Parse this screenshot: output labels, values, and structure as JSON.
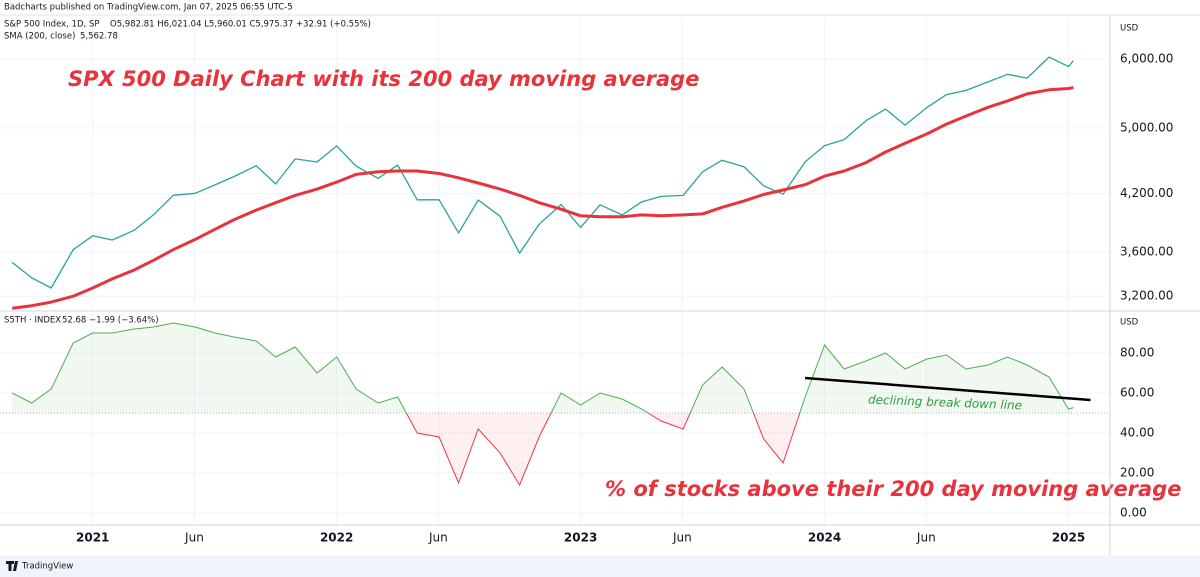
{
  "header": "Badcharts published on TradingView.com, Jan 07, 2025 06:55 UTC-5",
  "footer": "TradingView",
  "chart_data": [
    {
      "type": "line",
      "log": true,
      "currency": "USD",
      "title": "SPX 500 Daily Chart with its 200 day moving average",
      "legend": {
        "symbol": "S&P 500 Index, 1D, SP",
        "ohlc": "O5,982.81 H6,021.04 L5,960.01 C5,975.37 +32.91 (+0.55%)",
        "indicator": "SMA (200, close)",
        "indicator_value": "5,562.78"
      },
      "xlim": [
        2020.62,
        2025.17
      ],
      "x": [
        2020.67,
        2020.75,
        2020.83,
        2020.92,
        2021.0,
        2021.08,
        2021.17,
        2021.25,
        2021.33,
        2021.42,
        2021.5,
        2021.58,
        2021.67,
        2021.75,
        2021.83,
        2021.92,
        2022.0,
        2022.08,
        2022.17,
        2022.25,
        2022.33,
        2022.42,
        2022.5,
        2022.58,
        2022.67,
        2022.75,
        2022.83,
        2022.92,
        2023.0,
        2023.08,
        2023.17,
        2023.25,
        2023.33,
        2023.42,
        2023.5,
        2023.58,
        2023.67,
        2023.75,
        2023.83,
        2023.92,
        2024.0,
        2024.08,
        2024.17,
        2024.25,
        2024.33,
        2024.42,
        2024.5,
        2024.58,
        2024.67,
        2024.75,
        2024.83,
        2024.92,
        2025.0,
        2025.02
      ],
      "series": [
        {
          "name": "S&P 500 Index",
          "color": "#26a69a",
          "width": 1.3,
          "values": [
            3500,
            3360,
            3270,
            3620,
            3756,
            3714,
            3811,
            3973,
            4181,
            4204,
            4297,
            4395,
            4523,
            4308,
            4605,
            4567,
            4766,
            4516,
            4374,
            4530,
            4132,
            4132,
            3785,
            4130,
            3955,
            3586,
            3872,
            4080,
            3840,
            4077,
            3970,
            4109,
            4169,
            4180,
            4450,
            4589,
            4508,
            4288,
            4194,
            4568,
            4770,
            4846,
            5096,
            5254,
            5036,
            5278,
            5460,
            5522,
            5648,
            5762,
            5705,
            6032,
            5882,
            5975
          ]
        },
        {
          "name": "SMA (200, close)",
          "color": "#e8323c",
          "width": 3,
          "values": [
            3100,
            3120,
            3150,
            3200,
            3270,
            3350,
            3430,
            3520,
            3620,
            3720,
            3820,
            3920,
            4020,
            4100,
            4180,
            4250,
            4330,
            4420,
            4450,
            4460,
            4460,
            4430,
            4380,
            4320,
            4250,
            4180,
            4100,
            4030,
            3960,
            3950,
            3950,
            3970,
            3960,
            3970,
            3980,
            4050,
            4120,
            4190,
            4240,
            4300,
            4400,
            4460,
            4560,
            4690,
            4800,
            4920,
            5050,
            5160,
            5280,
            5370,
            5470,
            5530,
            5550,
            5563
          ]
        }
      ],
      "ylim": [
        3085,
        6690
      ],
      "yticks": [
        {
          "value": 3200,
          "label": "3,200.00"
        },
        {
          "value": 3600,
          "label": "3,600.00"
        },
        {
          "value": 4200,
          "label": "4,200.00"
        },
        {
          "value": 5000,
          "label": "5,000.00"
        },
        {
          "value": 6000,
          "label": "6,000.00"
        }
      ]
    },
    {
      "type": "area",
      "currency": "USD",
      "title": "% of stocks above their 200 day moving average",
      "legend": {
        "symbol": "S5TH · INDEX",
        "values": "52.68 −1.99 (−3.64%)"
      },
      "baseline": 50,
      "color_above": "#4caf50",
      "color_below": "#f23645",
      "xlim": [
        2020.62,
        2025.17
      ],
      "x": [
        2020.67,
        2020.75,
        2020.83,
        2020.92,
        2021.0,
        2021.08,
        2021.17,
        2021.25,
        2021.33,
        2021.42,
        2021.5,
        2021.58,
        2021.67,
        2021.75,
        2021.83,
        2021.92,
        2022.0,
        2022.08,
        2022.17,
        2022.25,
        2022.33,
        2022.42,
        2022.5,
        2022.58,
        2022.67,
        2022.75,
        2022.83,
        2022.92,
        2023.0,
        2023.08,
        2023.17,
        2023.25,
        2023.33,
        2023.42,
        2023.5,
        2023.58,
        2023.67,
        2023.75,
        2023.83,
        2023.92,
        2024.0,
        2024.08,
        2024.17,
        2024.25,
        2024.33,
        2024.42,
        2024.5,
        2024.58,
        2024.67,
        2024.75,
        2024.83,
        2024.92,
        2025.0,
        2025.02
      ],
      "values": [
        60,
        55,
        62,
        85,
        90,
        90,
        92,
        93,
        95,
        93,
        90,
        88,
        86,
        78,
        83,
        70,
        78,
        62,
        55,
        58,
        40,
        38,
        15,
        42,
        30,
        14,
        38,
        60,
        54,
        60,
        57,
        52,
        46,
        42,
        64,
        73,
        62,
        37,
        25,
        58,
        84,
        72,
        76,
        80,
        72,
        77,
        79,
        72,
        74,
        78,
        74,
        68,
        52,
        52.68
      ],
      "trendline": {
        "label": "declining break down line",
        "color": "#000000",
        "x": [
          2023.92,
          2025.09
        ],
        "values": [
          67.5,
          56.5
        ]
      },
      "ylim": [
        -6,
        100.5
      ],
      "yticks": [
        {
          "value": 0,
          "label": "0.00"
        },
        {
          "value": 20,
          "label": "20.00"
        },
        {
          "value": 40,
          "label": "40.00"
        },
        {
          "value": 60,
          "label": "60.00"
        },
        {
          "value": 80,
          "label": "80.00"
        }
      ],
      "xticks": [
        {
          "value": 2021,
          "label": "2021"
        },
        {
          "value": 2021.417,
          "label": "Jun"
        },
        {
          "value": 2022,
          "label": "2022"
        },
        {
          "value": 2022.417,
          "label": "Jun"
        },
        {
          "value": 2023,
          "label": "2023"
        },
        {
          "value": 2023.417,
          "label": "Jun"
        },
        {
          "value": 2024,
          "label": "2024"
        },
        {
          "value": 2024.417,
          "label": "Jun"
        },
        {
          "value": 2025,
          "label": "2025"
        }
      ]
    }
  ]
}
